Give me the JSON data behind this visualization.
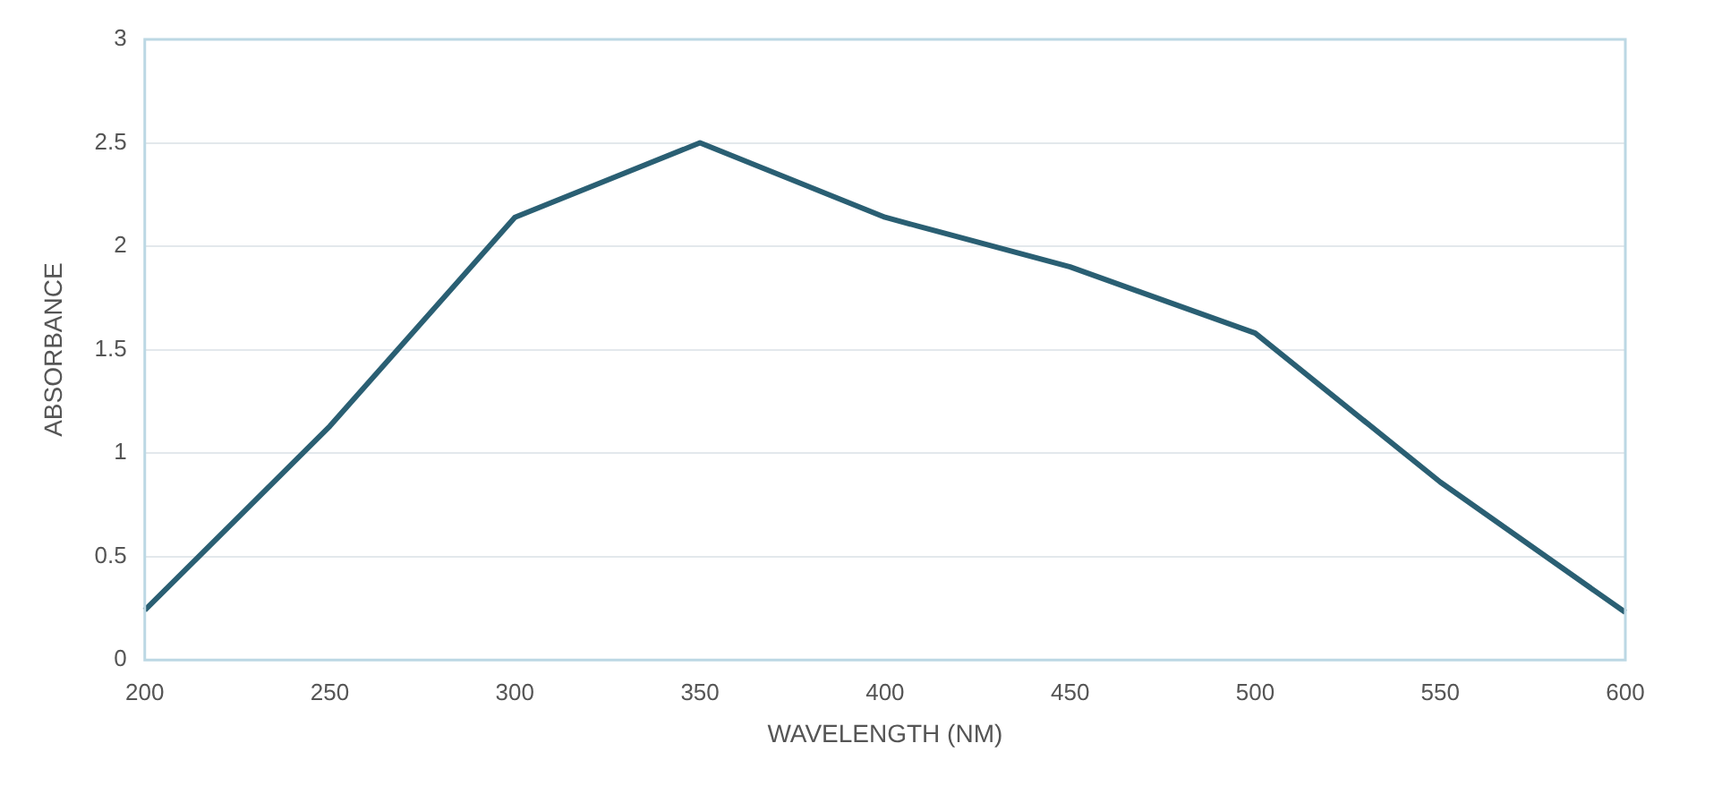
{
  "chart_data": {
    "type": "line",
    "xlabel": "WAVELENGTH (NM)",
    "ylabel": "ABSORBANCE",
    "categories": [
      "200",
      "250",
      "300",
      "350",
      "400",
      "450",
      "500",
      "550",
      "600"
    ],
    "series": [
      {
        "color": "#2a5f73",
        "values": [
          0.24,
          1.13,
          2.14,
          2.5,
          2.14,
          1.9,
          1.58,
          0.86,
          0.23
        ]
      }
    ],
    "ylim": [
      0,
      3
    ],
    "yticks": [
      0,
      0.5,
      1,
      1.5,
      2,
      2.5,
      3
    ],
    "grid": "y",
    "legend": false,
    "marker": "none",
    "line_style": "solid"
  }
}
